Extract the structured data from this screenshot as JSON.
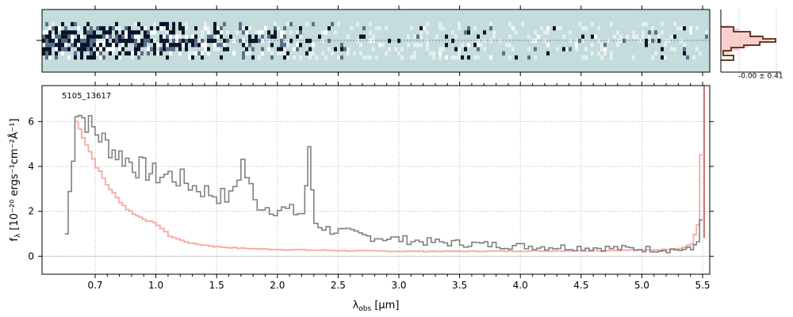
{
  "chart_data": [
    {
      "type": "heatmap",
      "panel": "2d-spectrum",
      "description_colors": {
        "background": "#c5dcdc",
        "dark": "#0a1428"
      },
      "trace_rows": 15,
      "x_ticks": [
        "0.7",
        "1.0",
        "1.5",
        "2.0",
        "2.5",
        "3.0",
        "3.5",
        "4.0",
        "4.5",
        "5.0",
        "5.5"
      ]
    },
    {
      "type": "histogram",
      "panel": "residual-histogram",
      "label": "-0.00 ± 0.41",
      "colors": {
        "data": "#6b3a2a",
        "model": "#f4b0a8"
      }
    },
    {
      "type": "line",
      "panel": "1d-spectrum",
      "annotation": "5105_13617",
      "xlabel": "λobs [µm]",
      "xlabel_main": "λ",
      "xlabel_sub": "obs",
      "xlabel_unit": " [µm]",
      "ylabel": "fλ [10⁻²⁰ ergs⁻¹cm⁻²Å⁻¹]",
      "ylabel_main": "f",
      "ylabel_sub": "λ",
      "ylabel_unit": " [10⁻²⁰ ergs⁻¹cm⁻²Å⁻¹]",
      "x_ticks": [
        "0.7",
        "1.0",
        "1.5",
        "2.0",
        "2.5",
        "3.0",
        "3.5",
        "4.0",
        "4.5",
        "5.0",
        "5.5"
      ],
      "y_ticks": [
        "0",
        "2",
        "4",
        "6"
      ],
      "ylim": [
        -0.8,
        7.6
      ],
      "grid": true,
      "series": [
        {
          "role": "data",
          "color": "#808080",
          "x": [
            0.55,
            0.6,
            0.65,
            0.7,
            0.75,
            0.8,
            0.85,
            0.9,
            0.95,
            1.0,
            1.1,
            1.2,
            1.3,
            1.4,
            1.5,
            1.6,
            1.7,
            1.8,
            1.9,
            2.0,
            2.1,
            2.2,
            2.25,
            2.3,
            2.4,
            2.5,
            2.6,
            2.7,
            2.8,
            2.9,
            3.0,
            3.2,
            3.4,
            3.6,
            3.8,
            4.0,
            4.2,
            4.4,
            4.6,
            4.8,
            5.0,
            5.1,
            5.2,
            5.3,
            5.4,
            5.45,
            5.5
          ],
          "y": [
            1.0,
            6.5,
            6.0,
            5.5,
            5.0,
            4.6,
            4.3,
            4.0,
            3.8,
            3.6,
            3.6,
            3.4,
            3.1,
            2.9,
            2.7,
            2.6,
            4.2,
            2.4,
            2.2,
            2.1,
            2.0,
            1.9,
            4.5,
            1.5,
            1.2,
            1.1,
            1.0,
            0.9,
            0.85,
            0.8,
            0.75,
            0.65,
            0.6,
            0.55,
            0.5,
            0.45,
            0.42,
            0.4,
            0.38,
            0.35,
            0.33,
            0.32,
            0.3,
            0.3,
            0.28,
            0.8,
            2.0
          ]
        },
        {
          "role": "model",
          "color": "#f4b0a8",
          "x": [
            0.6,
            0.65,
            0.7,
            0.75,
            0.8,
            0.85,
            0.9,
            0.95,
            1.0,
            1.1,
            1.2,
            1.3,
            1.5,
            1.7,
            2.0,
            2.5,
            3.0,
            3.5,
            4.0,
            4.5,
            5.0,
            5.2,
            5.3,
            5.4,
            5.45,
            5.5
          ],
          "y": [
            6.0,
            5.0,
            4.0,
            3.2,
            2.6,
            2.1,
            1.8,
            1.6,
            1.4,
            0.9,
            0.7,
            0.55,
            0.42,
            0.35,
            0.3,
            0.25,
            0.22,
            0.22,
            0.23,
            0.25,
            0.28,
            0.3,
            0.35,
            0.55,
            1.4,
            7.5
          ]
        }
      ]
    }
  ]
}
